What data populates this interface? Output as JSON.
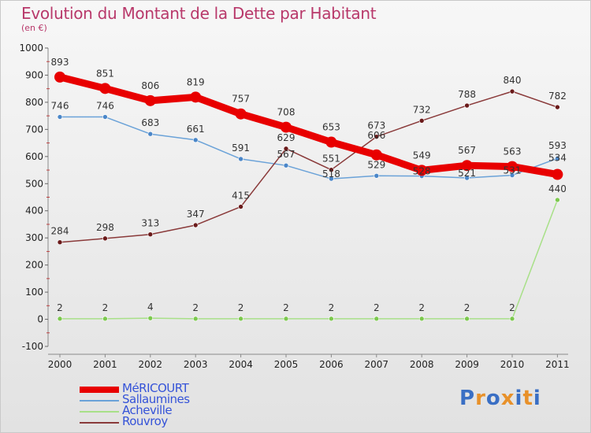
{
  "title": "Evolution du Montant de la Dette par Habitant",
  "subtitle": "(en €)",
  "brand": {
    "name": "Proxiti",
    "colors": [
      "#3a6fc4",
      "#e8912a",
      "#3a6fc4",
      "#e8912a",
      "#3a6fc4",
      "#e8912a",
      "#3a6fc4"
    ]
  },
  "chart_data": {
    "type": "line",
    "x": [
      "2000",
      "2001",
      "2002",
      "2003",
      "2004",
      "2005",
      "2006",
      "2007",
      "2008",
      "2009",
      "2010",
      "2011"
    ],
    "ylim": [
      -100,
      1000
    ],
    "yticks": [
      -100,
      0,
      100,
      200,
      300,
      400,
      500,
      600,
      700,
      800,
      900,
      1000
    ],
    "grid": false,
    "legend_position": "bottom-left",
    "series": [
      {
        "name": "MéRICOURT",
        "color": "#e80000",
        "marker_color": "#e80000",
        "width": 9,
        "values": [
          893,
          851,
          806,
          819,
          757,
          708,
          653,
          606,
          549,
          567,
          563,
          534
        ],
        "label_dy": [
          -15,
          -15,
          -15,
          -15,
          -15,
          -15,
          -15,
          -21,
          -15,
          -15,
          -15,
          -17
        ]
      },
      {
        "name": "Sallaumines",
        "color": "#6aa2d8",
        "marker_color": "#4a86c8",
        "width": 1.5,
        "values": [
          746,
          746,
          683,
          661,
          591,
          567,
          518,
          529,
          528,
          521,
          531,
          593
        ],
        "label_dy": [
          -10,
          -10,
          -10,
          -10,
          -10,
          -10,
          -2,
          -10,
          -2,
          -2,
          -2,
          -12
        ]
      },
      {
        "name": "Acheville",
        "color": "#a8e088",
        "marker_color": "#7cc84e",
        "width": 1.5,
        "values": [
          2,
          2,
          4,
          2,
          2,
          2,
          2,
          2,
          2,
          2,
          2,
          440
        ],
        "label_dy": [
          -10,
          -10,
          -10,
          -10,
          -10,
          -10,
          -10,
          -10,
          -10,
          -10,
          -10,
          -10
        ]
      },
      {
        "name": "Rouvroy",
        "color": "#8a3a3a",
        "marker_color": "#6a1a1a",
        "width": 1.5,
        "values": [
          284,
          298,
          313,
          347,
          415,
          629,
          551,
          673,
          732,
          788,
          840,
          782
        ],
        "label_dy": [
          -10,
          -10,
          -10,
          -10,
          -10,
          -10,
          -10,
          -10,
          -10,
          -10,
          -10,
          -10
        ]
      }
    ]
  }
}
